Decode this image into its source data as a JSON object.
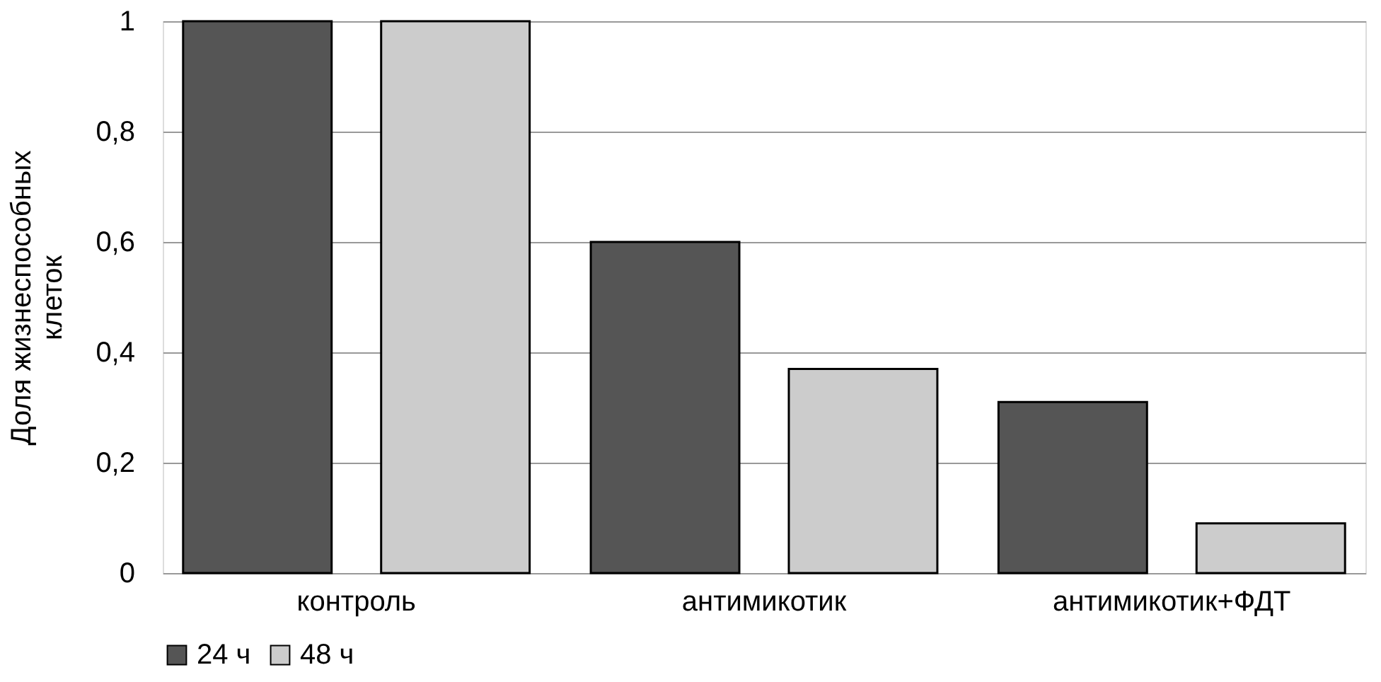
{
  "chart_data": {
    "type": "bar",
    "ylabel": "Доля жизнеспособных клеток",
    "categories": [
      "контроль",
      "антимикотик",
      "антимикотик+ФДТ"
    ],
    "series": [
      {
        "name": "24 ч",
        "color": "#555555",
        "values": [
          1,
          0.6,
          0.31
        ]
      },
      {
        "name": "48 ч",
        "color": "#cccccc",
        "values": [
          1,
          0.37,
          0.09
        ]
      }
    ],
    "ylim": [
      0,
      1
    ],
    "yticks": [
      0,
      {
        "value": 0.2,
        "label": "0,2"
      },
      {
        "value": 0.4,
        "label": "0,4"
      },
      {
        "value": 0.6,
        "label": "0,6"
      },
      {
        "value": 0.8,
        "label": "0,8"
      },
      1
    ],
    "grid": "y",
    "legend": "bottom"
  }
}
